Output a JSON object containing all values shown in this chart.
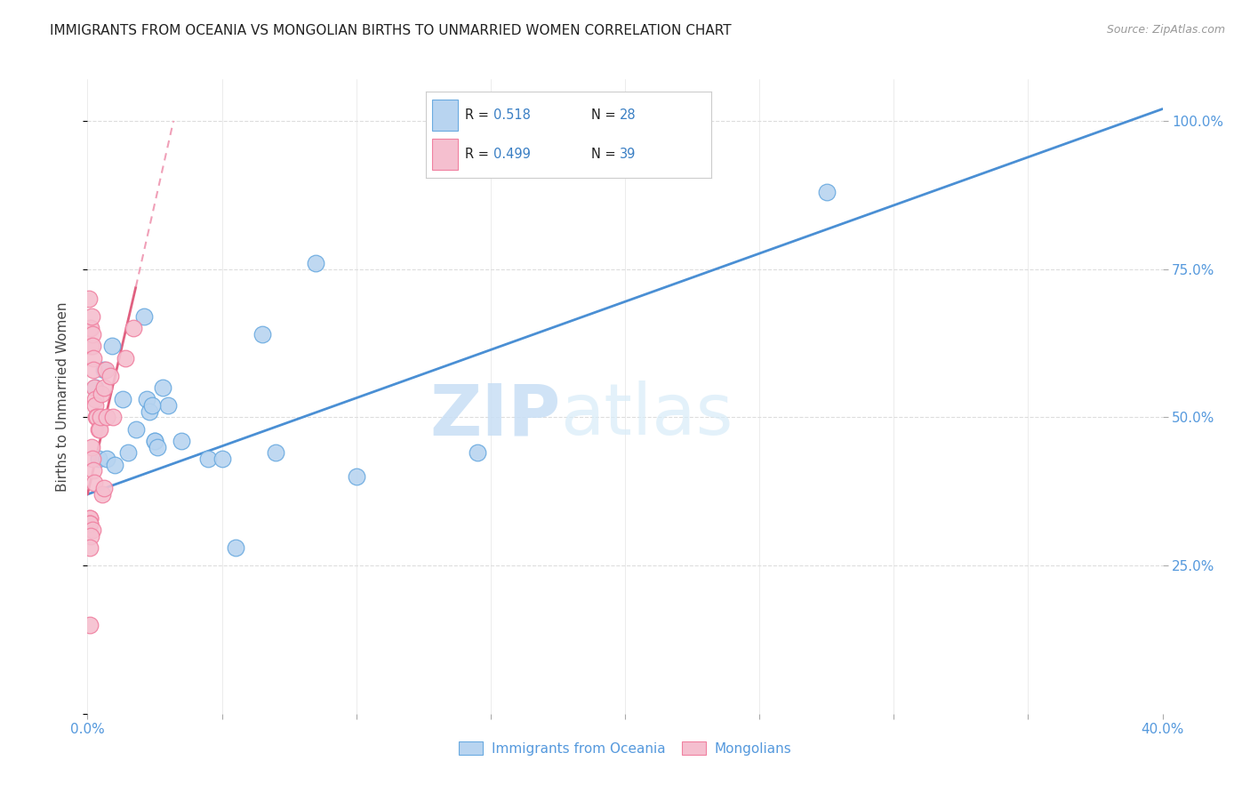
{
  "title": "IMMIGRANTS FROM OCEANIA VS MONGOLIAN BIRTHS TO UNMARRIED WOMEN CORRELATION CHART",
  "source": "Source: ZipAtlas.com",
  "ylabel": "Births to Unmarried Women",
  "legend_label_blue": "Immigrants from Oceania",
  "legend_label_pink": "Mongolians",
  "watermark_zip": "ZIP",
  "watermark_atlas": "atlas",
  "blue_color": "#b8d4f0",
  "pink_color": "#f5bfcf",
  "blue_edge_color": "#6aaae0",
  "pink_edge_color": "#f080a0",
  "blue_line_color": "#4a8fd4",
  "pink_line_color": "#e06080",
  "pink_dash_color": "#f0a0b8",
  "r_value_color": "#3a7fc4",
  "n_value_color": "#3a7fc4",
  "title_color": "#222222",
  "source_color": "#999999",
  "ylabel_color": "#444444",
  "xtick_color": "#5599dd",
  "ytick_color": "#5599dd",
  "grid_color": "#dddddd",
  "legend_box_color": "#cccccc",
  "blue_scatter_x": [
    1.5,
    2.2,
    2.8,
    0.4,
    0.7,
    1.0,
    1.8,
    3.0,
    0.3,
    0.6,
    0.9,
    2.1,
    4.5,
    3.5,
    2.5,
    1.3,
    8.5,
    10.0,
    6.5,
    5.0,
    2.3,
    2.5,
    14.5,
    27.5,
    2.4,
    2.6,
    7.0,
    5.5
  ],
  "blue_scatter_y": [
    44,
    53,
    55,
    43,
    43,
    42,
    48,
    52,
    55,
    58,
    62,
    67,
    43,
    46,
    46,
    53,
    76,
    40,
    64,
    43,
    51,
    46,
    44,
    88,
    52,
    45,
    44,
    28
  ],
  "pink_scatter_x": [
    0.05,
    0.08,
    0.12,
    0.12,
    0.15,
    0.18,
    0.18,
    0.22,
    0.22,
    0.25,
    0.28,
    0.3,
    0.32,
    0.35,
    0.42,
    0.45,
    0.48,
    0.52,
    0.6,
    0.68,
    0.72,
    0.85,
    0.95,
    1.4,
    1.7,
    0.15,
    0.2,
    0.22,
    0.25,
    0.55,
    0.6,
    0.08,
    0.09,
    0.1,
    0.09,
    0.18,
    0.13,
    0.08,
    0.07
  ],
  "pink_scatter_y": [
    70,
    65,
    65,
    62,
    67,
    64,
    62,
    60,
    58,
    55,
    53,
    52,
    50,
    50,
    48,
    48,
    50,
    54,
    55,
    58,
    50,
    57,
    50,
    60,
    65,
    45,
    43,
    41,
    39,
    37,
    38,
    33,
    33,
    32,
    32,
    31,
    30,
    28,
    15
  ],
  "xlim": [
    0,
    40
  ],
  "ylim": [
    0,
    107
  ],
  "blue_line_x0": 0,
  "blue_line_x1": 40,
  "blue_line_y0": 37,
  "blue_line_y1": 102,
  "pink_solid_x0": 0.0,
  "pink_solid_x1": 1.8,
  "pink_solid_y0": 37,
  "pink_solid_y1": 72,
  "pink_dash_x0": 1.8,
  "pink_dash_x1": 3.2,
  "pink_dash_y0": 72,
  "pink_dash_y1": 100,
  "xaxis_ticks": [
    0,
    5,
    10,
    15,
    20,
    25,
    30,
    35,
    40
  ],
  "yaxis_ticks": [
    0,
    25,
    50,
    75,
    100
  ],
  "xaxis_labels": [
    "0.0%",
    "",
    "",
    "",
    "",
    "",
    "",
    "",
    "40.0%"
  ],
  "yaxis_right_labels": [
    "25.0%",
    "50.0%",
    "75.0%",
    "100.0%"
  ]
}
